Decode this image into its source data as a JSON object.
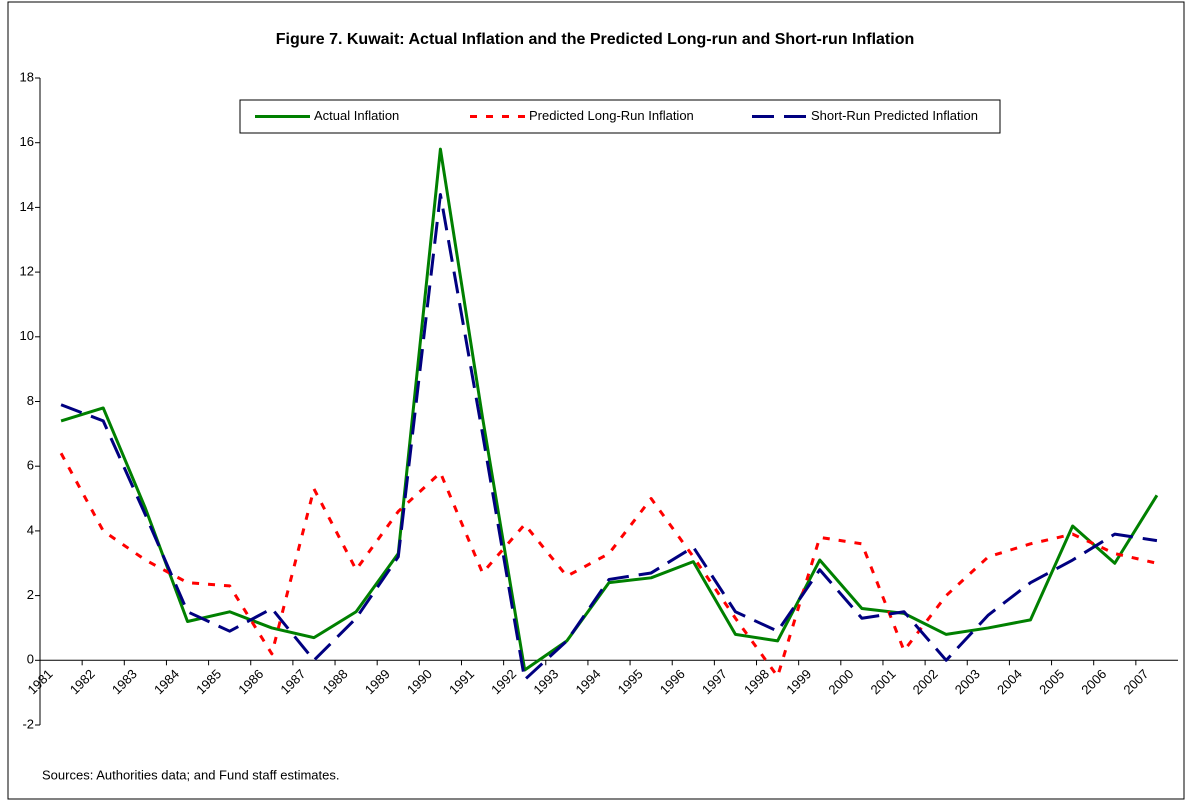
{
  "chart_data": {
    "type": "line",
    "title": "Figure 7. Kuwait: Actual Inflation and the Predicted Long-run and Short-run Inflation",
    "source": "Sources: Authorities data; and Fund staff estimates.",
    "categories": [
      "1981",
      "1982",
      "1983",
      "1984",
      "1985",
      "1986",
      "1987",
      "1988",
      "1989",
      "1990",
      "1991",
      "1992",
      "1993",
      "1994",
      "1995",
      "1996",
      "1997",
      "1998",
      "1999",
      "2000",
      "2001",
      "2002",
      "2003",
      "2004",
      "2005",
      "2006",
      "2007"
    ],
    "series": [
      {
        "name": "Actual Inflation",
        "color": "#008000",
        "line_style": "solid",
        "values": [
          7.4,
          7.8,
          4.7,
          1.2,
          1.5,
          1.0,
          0.7,
          1.5,
          3.3,
          15.8,
          7.5,
          -0.3,
          0.6,
          2.4,
          2.55,
          3.05,
          0.8,
          0.6,
          3.1,
          1.6,
          1.45,
          0.8,
          1.0,
          1.25,
          4.15,
          3.0,
          5.1
        ]
      },
      {
        "name": "Predicted Long-Run Inflation",
        "color": "#ff0000",
        "line_style": "dotted",
        "values": [
          6.4,
          4.0,
          3.1,
          2.4,
          2.3,
          0.2,
          5.3,
          2.8,
          4.6,
          5.8,
          2.7,
          4.2,
          2.6,
          3.3,
          5.0,
          3.2,
          1.3,
          -0.5,
          3.8,
          3.6,
          0.3,
          2.0,
          3.2,
          3.6,
          3.9,
          3.3,
          3.0
        ]
      },
      {
        "name": "Short-Run Predicted Inflation",
        "color": "#000080",
        "line_style": "dashed",
        "values": [
          7.9,
          7.4,
          4.5,
          1.5,
          0.9,
          1.6,
          0.0,
          1.3,
          3.2,
          14.4,
          7.0,
          -0.6,
          0.6,
          2.5,
          2.7,
          3.5,
          1.5,
          0.9,
          2.8,
          1.3,
          1.5,
          0.0,
          1.4,
          2.4,
          3.1,
          3.9,
          3.7
        ]
      }
    ],
    "ylim": [
      -2,
      18
    ],
    "yticks": [
      -2,
      0,
      2,
      4,
      6,
      8,
      10,
      12,
      14,
      16,
      18
    ],
    "grid": false,
    "legend": "top"
  }
}
